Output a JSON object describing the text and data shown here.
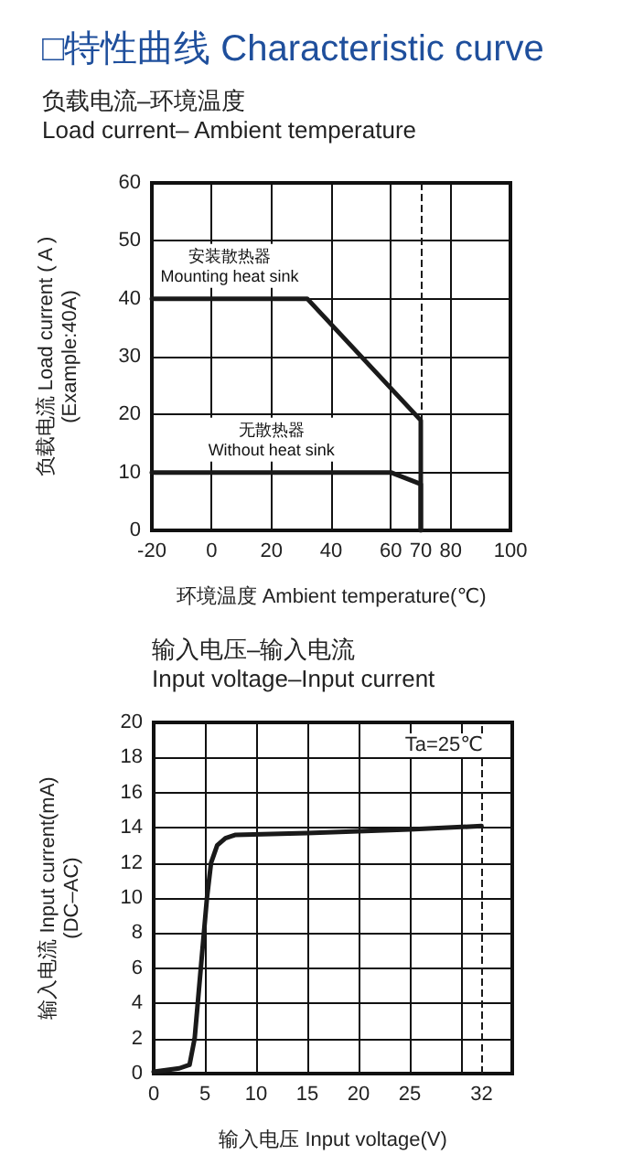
{
  "chart_data": [
    {
      "type": "line",
      "title": "□特性曲线 Characteristic curve",
      "subtitle": "负载电流–环境温度\nLoad current– Ambient temperature",
      "xlabel": "环境温度 Ambient temperature(℃)",
      "ylabel": "负载电流 Load current ( A )\n(Example:40A)",
      "series": [
        {
          "name": "安装散热器\nMounting heat sink",
          "color": "#1a1a1a",
          "x": [
            -20,
            32,
            70,
            70
          ],
          "values": [
            40,
            40,
            19,
            0
          ]
        },
        {
          "name": "无散热器\nWithout heat sink",
          "color": "#1a1a1a",
          "x": [
            -20,
            60,
            70,
            70
          ],
          "values": [
            10,
            10,
            8,
            0
          ]
        }
      ],
      "xlim": [
        -20,
        100
      ],
      "xticks": [
        -20,
        0,
        20,
        40,
        60,
        70,
        80,
        100
      ],
      "ylim": [
        0,
        60
      ],
      "yticks": [
        0,
        10,
        20,
        30,
        40,
        50,
        60
      ],
      "ref_lines": [
        {
          "axis": "x",
          "value": 70,
          "line_style": "dashed",
          "color": "#1a1a1a"
        }
      ],
      "grid": true,
      "marker": "none",
      "line_style": "solid"
    },
    {
      "type": "line",
      "title": "输入电压–输入电流\nInput voltage–Input current",
      "xlabel": "输入电压 Input voltage(V)",
      "ylabel": "输入电流 Input current(mA)\n(DC–AC)",
      "series": [
        {
          "color": "#1a1a1a",
          "x": [
            0,
            2.5,
            3.5,
            4,
            4.6,
            5.2,
            5.6,
            6.2,
            7,
            8,
            15,
            25,
            32
          ],
          "values": [
            0.1,
            0.3,
            0.5,
            2,
            6,
            10,
            12,
            13,
            13.4,
            13.6,
            13.7,
            13.9,
            14.1
          ]
        }
      ],
      "xlim": [
        0,
        35
      ],
      "xticks": [
        0,
        5,
        10,
        15,
        20,
        25,
        {
          "value": 30,
          "label": null
        },
        32
      ],
      "ylim": [
        0,
        20
      ],
      "yticks": [
        0,
        2,
        4,
        6,
        8,
        10,
        12,
        14,
        16,
        18,
        20
      ],
      "ref_lines": [
        {
          "axis": "x",
          "value": 32,
          "line_style": "dashed",
          "color": "#1a1a1a"
        }
      ],
      "annotations": [
        "Ta=25℃"
      ],
      "grid": true,
      "marker": "none",
      "line_style": "solid"
    }
  ]
}
